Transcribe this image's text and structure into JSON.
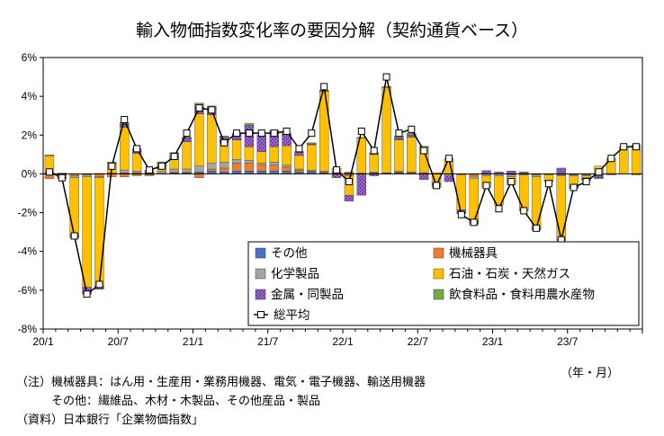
{
  "chart_data": {
    "type": "bar",
    "stacked": true,
    "title": "輸入物価指数変化率の要因分解（契約通貨ベース）",
    "unit_label": "（年・月）",
    "ylim": [
      -8,
      6
    ],
    "yticks": [
      "6%",
      "4%",
      "2%",
      "0%",
      "-2%",
      "-4%",
      "-6%",
      "-8%"
    ],
    "ytick_values": [
      6,
      4,
      2,
      0,
      -2,
      -4,
      -6,
      -8
    ],
    "grid": false,
    "legend_position": "lower-right",
    "x_tick_labels": [
      {
        "index": 0,
        "label": "20/1"
      },
      {
        "index": 6,
        "label": "20/7"
      },
      {
        "index": 12,
        "label": "21/1"
      },
      {
        "index": 18,
        "label": "21/7"
      },
      {
        "index": 24,
        "label": "22/1"
      },
      {
        "index": 30,
        "label": "22/7"
      },
      {
        "index": 36,
        "label": "23/1"
      },
      {
        "index": 42,
        "label": "23/7"
      }
    ],
    "categories": [
      "2020/01",
      "2020/02",
      "2020/03",
      "2020/04",
      "2020/05",
      "2020/06",
      "2020/07",
      "2020/08",
      "2020/09",
      "2020/10",
      "2020/11",
      "2020/12",
      "2021/01",
      "2021/02",
      "2021/03",
      "2021/04",
      "2021/05",
      "2021/06",
      "2021/07",
      "2021/08",
      "2021/09",
      "2021/10",
      "2021/11",
      "2021/12",
      "2022/01",
      "2022/02",
      "2022/03",
      "2022/04",
      "2022/05",
      "2022/06",
      "2022/07",
      "2022/08",
      "2022/09",
      "2022/10",
      "2022/11",
      "2022/12",
      "2023/01",
      "2023/02",
      "2023/03",
      "2023/04",
      "2023/05",
      "2023/06",
      "2023/07",
      "2023/08",
      "2023/09",
      "2023/10",
      "2023/11",
      "2023/12"
    ],
    "series": [
      {
        "name": "その他",
        "color": "#4472C4",
        "values": [
          0.03,
          0.02,
          0,
          0,
          0,
          0,
          0.05,
          0.05,
          0.02,
          0.02,
          0.05,
          0.05,
          0.1,
          0.15,
          0.1,
          0.15,
          0.15,
          0.15,
          0.15,
          0.15,
          0.1,
          0.1,
          0.05,
          0.02,
          0.02,
          0.02,
          0.05,
          0.02,
          0.05,
          0.02,
          0.02,
          0,
          0,
          0,
          -0.02,
          0,
          0,
          0,
          0,
          0,
          0,
          0,
          0,
          0,
          0,
          0,
          0,
          0
        ]
      },
      {
        "name": "機械器具",
        "color": "#ED7D31",
        "values": [
          -0.25,
          -0.1,
          -0.1,
          -0.05,
          -0.15,
          -0.15,
          -0.15,
          -0.1,
          -0.05,
          0,
          0.05,
          0.05,
          -0.2,
          0.1,
          0.2,
          0.4,
          0.4,
          0.3,
          0.3,
          0.2,
          0.1,
          0.05,
          0.05,
          0.05,
          -0.1,
          0,
          0,
          0.02,
          0.05,
          0.05,
          0.05,
          0.05,
          0,
          0,
          -0.1,
          0.02,
          0,
          -0.05,
          0,
          -0.05,
          0,
          -0.05,
          -0.05,
          -0.05,
          -0.05,
          0,
          0,
          -0.05
        ]
      },
      {
        "name": "化学製品",
        "color": "#A5A5A5",
        "values": [
          0.05,
          0,
          -0.1,
          -0.1,
          -0.05,
          0.05,
          0.15,
          0.1,
          0.02,
          0.1,
          0.15,
          0.15,
          0.3,
          0.3,
          0.3,
          0.2,
          0.15,
          0.1,
          0.15,
          0.1,
          0.05,
          0.05,
          0.05,
          0.02,
          0.02,
          0.02,
          0.05,
          0.02,
          0.05,
          0.02,
          0,
          0,
          -0.1,
          -0.05,
          -0.1,
          -0.1,
          -0.1,
          -0.1,
          -0.05,
          -0.1,
          -0.05,
          -0.05,
          -0.05,
          -0.05,
          -0.05,
          0,
          0,
          0
        ]
      },
      {
        "name": "石油・石炭・天然ガス",
        "color": "#FFC000",
        "values": [
          0.85,
          -0.1,
          -2.9,
          -5.7,
          -5.6,
          0.5,
          2.2,
          0.9,
          -0.05,
          0.15,
          0.5,
          1.4,
          2.7,
          2.5,
          1.0,
          1.0,
          0.7,
          0.6,
          0.8,
          1.0,
          0.7,
          1.3,
          4.1,
          0.2,
          -1.0,
          1.8,
          0.9,
          4.4,
          1.6,
          1.8,
          1.3,
          -0.5,
          0.8,
          -1.8,
          -2.2,
          -0.6,
          -1.5,
          -0.4,
          -1.8,
          -2.6,
          -0.3,
          -3.3,
          -0.5,
          -0.1,
          0.4,
          0.8,
          1.4,
          1.5
        ]
      },
      {
        "name": "金属・同製品",
        "color": "#9966CC",
        "pattern": true,
        "values": [
          0,
          -0.05,
          -0.2,
          -0.3,
          -0.15,
          0,
          0.15,
          0.15,
          0.05,
          0.15,
          0.2,
          0.2,
          0.35,
          0.35,
          0.3,
          0.3,
          1.1,
          0.8,
          0.8,
          0.6,
          0.15,
          0.05,
          0.02,
          -0.2,
          -0.3,
          -1.1,
          -0.1,
          0,
          0.1,
          0.1,
          -0.3,
          -0.2,
          -0.3,
          -0.2,
          -0.15,
          0.15,
          0.1,
          0.15,
          0.1,
          -0.1,
          -0.05,
          0.3,
          -0.1,
          -0.1,
          -0.1,
          -0.05,
          0,
          0
        ]
      },
      {
        "name": "飲食料品・食料用農水産物",
        "color": "#70AD47",
        "values": [
          0.05,
          0.02,
          0,
          -0.05,
          0.02,
          0.05,
          0.1,
          0.1,
          0.1,
          0.2,
          0.15,
          0.05,
          0.2,
          0.1,
          0.05,
          0.05,
          0.1,
          0.05,
          0.05,
          0.05,
          0.05,
          0.05,
          0.05,
          0,
          0.05,
          0.05,
          0.1,
          0.05,
          0.1,
          0.1,
          0.05,
          0,
          0,
          0,
          -0.05,
          0,
          0,
          0,
          -0.05,
          -0.05,
          0,
          -0.05,
          -0.05,
          -0.05,
          -0.05,
          0,
          0,
          0
        ]
      }
    ],
    "total": {
      "name": "総平均",
      "color": "#000000",
      "values": [
        0.1,
        -0.2,
        -3.2,
        -6.2,
        -5.7,
        0.4,
        2.8,
        1.3,
        0.2,
        0.4,
        0.9,
        2.1,
        3.4,
        3.3,
        1.6,
        2.1,
        2.1,
        2.1,
        2.1,
        2.2,
        1.3,
        2.1,
        4.5,
        0.2,
        -0.4,
        2.2,
        1.2,
        5.0,
        2.1,
        2.3,
        1.2,
        -0.6,
        0.8,
        -2.1,
        -2.5,
        -0.6,
        -1.8,
        -0.4,
        -1.9,
        -2.8,
        -0.5,
        -3.4,
        -0.7,
        -0.4,
        0.1,
        0.8,
        1.4,
        1.4
      ]
    }
  },
  "notes": {
    "line1": "（注）機械器具：はん用・生産用・業務用機器、電気・電子機器、輸送用機器",
    "line2": "　　　その他：繊維品、木材・木製品、その他産品・製品",
    "line3": "（資料）日本銀行「企業物価指数」"
  }
}
